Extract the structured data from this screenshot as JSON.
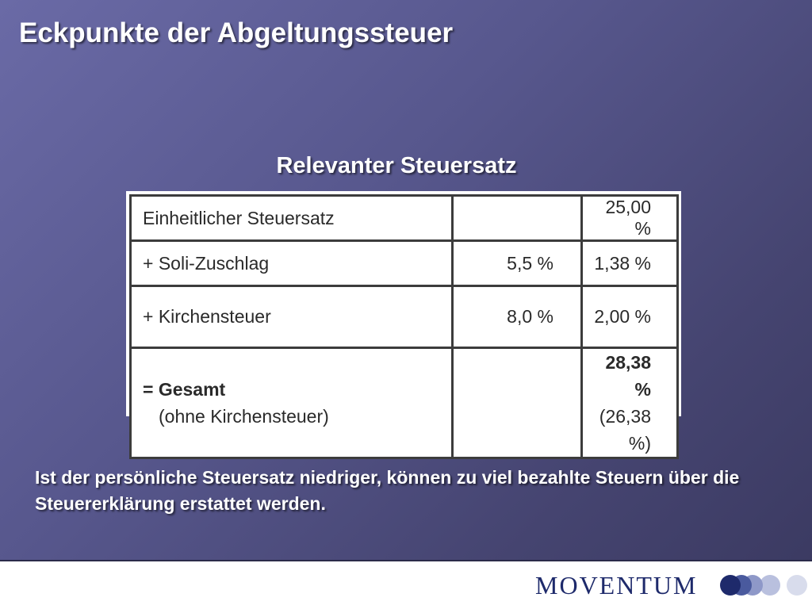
{
  "slide": {
    "title": "Eckpunkte der Abgeltungssteuer",
    "subtitle": "Relevanter Steuersatz"
  },
  "tax_table": {
    "rows": [
      {
        "label": "Einheitlicher Steuersatz",
        "rate": "",
        "value": "25,00 %"
      },
      {
        "label": "+ Soli-Zuschlag",
        "rate": "5,5 %",
        "value": "1,38 %"
      },
      {
        "label": "+ Kirchensteuer",
        "rate": "8,0 %",
        "value": "2,00 %"
      },
      {
        "label": "= Gesamt",
        "label_sub": "(ohne Kirchensteuer)",
        "rate": "",
        "value": "28,38 %",
        "value_sub": "(26,38 %)"
      }
    ]
  },
  "note": "Ist der persönliche Steuersatz niedriger, können zu viel bezahlte Steuern über die Steuererklärung erstattet werden.",
  "footer": {
    "brand": "MOVENTUM"
  },
  "colors": {
    "brand": "#1e2a6b",
    "dots": [
      "#1e2a6b",
      "#4a5a9e",
      "#8e98c8",
      "#b9c0de",
      "#d8dcec"
    ]
  }
}
